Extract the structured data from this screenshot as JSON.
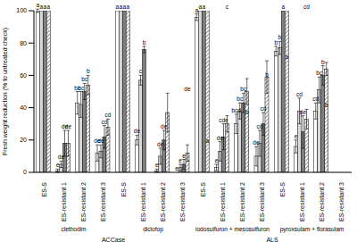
{
  "chart_data": {
    "type": "bar",
    "y_label": "Fresh weight reduction (% to untreated check)",
    "categories": [
      "ES-S",
      "ES-resistant 1",
      "ES-resistant 2",
      "ES-resistant 3",
      "ES-S",
      "ES-resistant 1",
      "ES-resistant 2",
      "ES-resistant 3",
      "ES-S",
      "ES-resistant 1",
      "ES-resistant 2",
      "ES-resistant 3",
      "ES-S",
      "ES-resistant 1",
      "ES-resistant 2",
      "ES-resistant 3"
    ],
    "groups": [
      "clethodim",
      "diclofop",
      "iodosulfuron + mesosulfuron",
      "pyroxsulam + florasulam"
    ],
    "classes": [
      "ACCase",
      "ALS"
    ],
    "series": [
      {
        "color": "#ffffff",
        "values": [
          100,
          1,
          43,
          12,
          100,
          20,
          1,
          0,
          96,
          3,
          30,
          10,
          75,
          16,
          38,
          null
        ],
        "errors": [
          1,
          1,
          7,
          5,
          0,
          3,
          1,
          0,
          2,
          2,
          6,
          6,
          3,
          4,
          5,
          null
        ],
        "letters": [
          "a",
          "e",
          "bc",
          "de",
          "a",
          "de",
          "e",
          "e",
          "a",
          "e",
          "bcd",
          "de",
          "b",
          "e",
          "cd",
          null
        ]
      },
      {
        "color": "#d9d9d9",
        "values": [
          100,
          5,
          42,
          13,
          100,
          57,
          10,
          3,
          100,
          13,
          38,
          18,
          77,
          38,
          51,
          null
        ],
        "errors": [
          0,
          2,
          8,
          4,
          0,
          3,
          5,
          2,
          0,
          6,
          5,
          8,
          4,
          8,
          8,
          null
        ],
        "letters": [
          "a",
          "de",
          "bc",
          "de",
          "a",
          "c",
          "de",
          "e",
          "a",
          "de",
          "bc",
          "cd",
          "b",
          "cd",
          "bc",
          null
        ]
      },
      {
        "color": "#7f7f7f",
        "values": [
          100,
          18,
          50,
          22,
          100,
          76,
          20,
          5,
          100,
          22,
          43,
          30,
          100,
          25,
          60,
          null
        ],
        "errors": [
          0,
          8,
          5,
          7,
          0,
          2,
          6,
          3,
          0,
          8,
          6,
          7,
          0,
          10,
          6,
          null
        ],
        "letters": [
          "a",
          "de",
          "bc",
          "cd",
          "a",
          "b",
          "de",
          "e",
          "a",
          "cde",
          "bc",
          "cd",
          "a",
          "de",
          "b",
          null
        ]
      },
      {
        "color": "#595959",
        "values": [
          100,
          18,
          54,
          28,
          100,
          null,
          37,
          12,
          100,
          30,
          50,
          59,
          100,
          33,
          64,
          null
        ],
        "errors": [
          0,
          8,
          6,
          5,
          0,
          null,
          12,
          5,
          0,
          5,
          8,
          10,
          0,
          6,
          4,
          null
        ],
        "letters": [
          "a",
          "de",
          "b",
          "cd",
          "a",
          null,
          "cd",
          "de",
          "a",
          "c",
          "b",
          "b",
          "a",
          "cd",
          "b",
          null
        ]
      }
    ],
    "ylim": [
      0,
      100
    ],
    "yticks": [
      0,
      20,
      40,
      60,
      80,
      100
    ],
    "grid": false
  }
}
